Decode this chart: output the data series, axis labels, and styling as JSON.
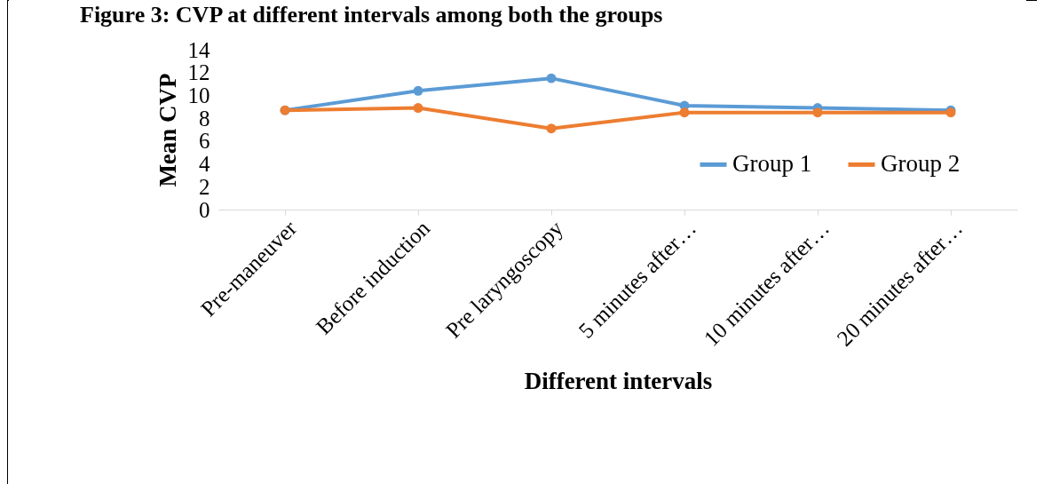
{
  "chart_data": {
    "type": "line",
    "title": "Figure 3: CVP at different intervals among both the groups",
    "xlabel": "Different intervals",
    "ylabel": "Mean CVP",
    "categories": [
      "Pre-maneuver",
      "Before induction",
      "Pre laryngoscopy",
      "5 minutes after…",
      "10 minutes after…",
      "20 minutes after…"
    ],
    "series": [
      {
        "name": "Group 1",
        "color": "#5b9bd5",
        "values": [
          8.7,
          10.4,
          11.5,
          9.1,
          8.9,
          8.7
        ]
      },
      {
        "name": "Group 2",
        "color": "#ed7d31",
        "values": [
          8.7,
          8.9,
          7.1,
          8.5,
          8.5,
          8.5
        ]
      }
    ],
    "ylim": [
      0,
      14
    ],
    "yticks": [
      0,
      2,
      4,
      6,
      8,
      10,
      12,
      14
    ],
    "grid": false,
    "legend": "right",
    "marker": "circle",
    "line_style": "solid"
  }
}
